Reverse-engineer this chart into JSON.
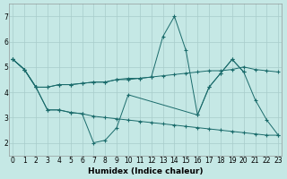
{
  "xlabel": "Humidex (Indice chaleur)",
  "background_color": "#c5e8e5",
  "grid_color": "#a8ccca",
  "line_color": "#1a6b6b",
  "xlim": [
    -0.3,
    23.3
  ],
  "ylim": [
    1.5,
    7.5
  ],
  "xticks": [
    0,
    1,
    2,
    3,
    4,
    5,
    6,
    7,
    8,
    9,
    10,
    11,
    12,
    13,
    14,
    15,
    16,
    17,
    18,
    19,
    20,
    21,
    22,
    23
  ],
  "yticks": [
    2,
    3,
    4,
    5,
    6,
    7
  ],
  "line1_x": [
    0,
    1,
    2,
    3,
    4,
    5,
    6,
    7,
    8,
    9,
    10,
    11,
    12,
    13,
    14,
    15,
    16,
    17,
    18,
    19,
    20,
    21,
    22,
    23
  ],
  "line1_y": [
    5.3,
    4.9,
    4.2,
    4.2,
    4.3,
    4.3,
    4.35,
    4.4,
    4.4,
    4.5,
    4.5,
    4.55,
    4.6,
    4.65,
    4.7,
    4.75,
    4.8,
    4.85,
    4.85,
    4.9,
    5.0,
    4.9,
    4.85,
    4.8
  ],
  "line2_x": [
    0,
    1,
    2,
    3,
    4,
    5,
    6,
    7,
    8,
    9,
    10,
    11,
    12,
    13,
    14,
    15,
    16,
    17,
    18,
    19,
    20,
    21,
    22,
    23
  ],
  "line2_y": [
    5.3,
    4.9,
    4.2,
    4.2,
    4.3,
    4.3,
    4.35,
    4.4,
    4.4,
    4.5,
    4.55,
    4.55,
    4.6,
    6.2,
    7.0,
    5.65,
    3.1,
    4.2,
    4.75,
    5.3,
    4.8,
    3.7,
    2.9,
    2.3
  ],
  "line3_x": [
    0,
    1,
    2,
    3,
    4,
    5,
    6,
    7,
    8,
    9,
    10,
    11,
    12,
    13,
    14,
    15,
    16,
    17,
    18,
    19,
    20,
    21,
    22,
    23
  ],
  "line3_y": [
    5.3,
    4.9,
    4.2,
    3.3,
    3.3,
    3.2,
    3.15,
    3.05,
    3.0,
    2.95,
    2.9,
    2.85,
    2.8,
    2.75,
    2.7,
    2.65,
    2.6,
    2.55,
    2.5,
    2.45,
    2.4,
    2.35,
    2.3,
    2.3
  ],
  "line4_x": [
    0,
    1,
    2,
    3,
    4,
    5,
    6,
    7,
    8,
    9,
    10,
    16,
    17,
    18,
    19,
    20
  ],
  "line4_y": [
    5.3,
    4.9,
    4.2,
    3.3,
    3.3,
    3.2,
    3.15,
    2.0,
    2.1,
    2.6,
    3.9,
    3.1,
    4.2,
    4.75,
    5.3,
    4.8
  ]
}
